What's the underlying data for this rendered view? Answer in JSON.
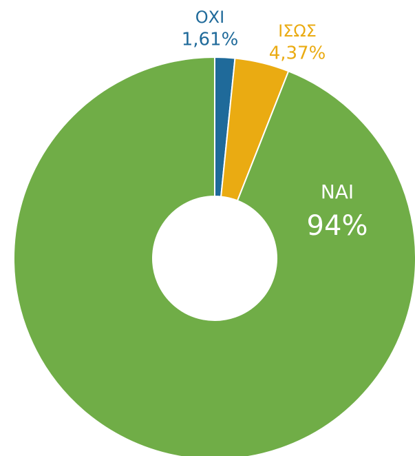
{
  "chart_data": {
    "type": "pie",
    "categories": [
      "ΟΧΙ",
      "ΙΣΩΣ",
      "ΝΑΙ"
    ],
    "values": [
      1.61,
      4.37,
      94
    ],
    "value_labels": [
      "1,61%",
      "4,37%",
      "94%"
    ],
    "colors": [
      "#1f6a9a",
      "#eaab12",
      "#70ad47"
    ]
  }
}
